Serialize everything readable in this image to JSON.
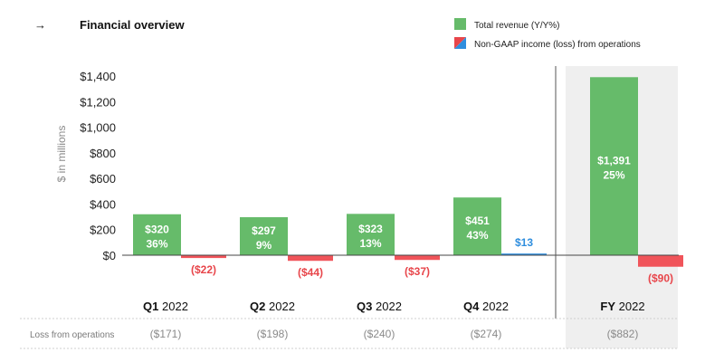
{
  "header": {
    "arrow": "→",
    "title": "Financial overview"
  },
  "legend": [
    {
      "label": "Total revenue (Y/Y%)",
      "color": "#66bb6a",
      "icon": "green-square"
    },
    {
      "label": "Non-GAAP income (loss) from operations",
      "color": "#e8464b",
      "color2": "#2f8ede",
      "icon": "split-red-blue-square"
    }
  ],
  "colors": {
    "revenue": "#66bb6a",
    "loss": "#f0545a",
    "income": "#2f8ede",
    "fy_band": "#efefef"
  },
  "chart_data": {
    "type": "bar",
    "title": "Financial overview",
    "ylabel": "$ in millions",
    "ylim": [
      0,
      1400
    ],
    "yticks": [
      "$0",
      "$200",
      "$400",
      "$600",
      "$800",
      "$1,000",
      "$1,200",
      "$1,400"
    ],
    "ytick_values": [
      0,
      200,
      400,
      600,
      800,
      1000,
      1200,
      1400
    ],
    "categories": [
      {
        "bold": "Q1",
        "rest": " 2022"
      },
      {
        "bold": "Q2",
        "rest": " 2022"
      },
      {
        "bold": "Q3",
        "rest": " 2022"
      },
      {
        "bold": "Q4",
        "rest": " 2022"
      },
      {
        "bold": "FY",
        "rest": " 2022"
      }
    ],
    "series": [
      {
        "name": "Total revenue (Y/Y%)",
        "values": [
          320,
          297,
          323,
          451,
          1391
        ],
        "labels": [
          "$320",
          "$297",
          "$323",
          "$451",
          "$1,391"
        ],
        "growth": [
          "36%",
          "9%",
          "13%",
          "43%",
          "25%"
        ]
      },
      {
        "name": "Non-GAAP income (loss) from operations",
        "values": [
          -22,
          -44,
          -37,
          13,
          -90
        ],
        "labels": [
          "($22)",
          "($44)",
          "($37)",
          "$13",
          "($90)"
        ]
      }
    ],
    "highlight_category": "FY 2022",
    "legend_position": "top-right"
  },
  "footer_row": {
    "label": "Loss from operations",
    "values": [
      "($171)",
      "($198)",
      "($240)",
      "($274)",
      "($882)"
    ]
  }
}
